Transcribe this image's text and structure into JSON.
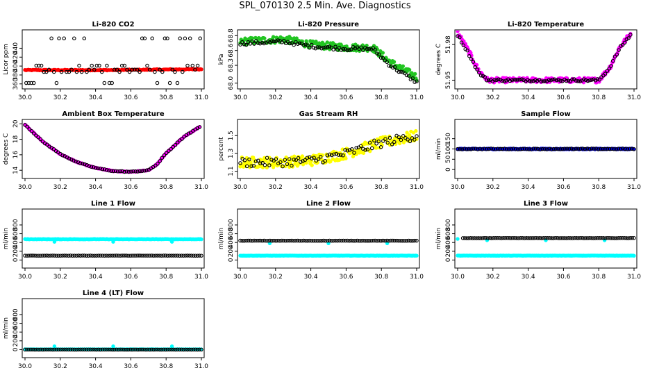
{
  "page_title": "SPL_070130  2.5 Min. Ave. Diagnostics",
  "colors": {
    "black": "#000000",
    "red": "#ff0000",
    "green": "#00cc00",
    "magenta": "#ff00ff",
    "yellow": "#ffff00",
    "blue": "#0000ff",
    "cyan": "#00ffff"
  },
  "chart_data": [
    {
      "type": "scatter",
      "title": "Li-820 CO2",
      "ylabel": "Licor ppm",
      "xlim": [
        30.0,
        31.0
      ],
      "ylim": [
        355,
        475
      ],
      "x_ticks": [
        "30.0",
        "30.2",
        "30.4",
        "30.6",
        "30.8",
        "31.0"
      ],
      "x_tick_values": [
        30.0,
        30.2,
        30.4,
        30.6,
        30.8,
        31.0
      ],
      "y_ticks": [
        "360",
        "380",
        "400",
        "420",
        "440"
      ],
      "y_tick_values": [
        360,
        380,
        400,
        420,
        440
      ],
      "series": [
        {
          "name": "CO2 (red)",
          "color": "#ff0000",
          "marker": "filled",
          "curve": [
            [
              30.0,
              391
            ],
            [
              30.5,
              391
            ],
            [
              31.0,
              393
            ]
          ],
          "noise": 1,
          "n": 160
        },
        {
          "name": "CO2 (black)",
          "color": "#000000",
          "marker": "open",
          "levels": [
            362,
            387,
            392,
            401,
            462
          ],
          "n": 70
        }
      ]
    },
    {
      "type": "scatter",
      "title": "Li-820 Pressure",
      "ylabel": "kPa",
      "xlim": [
        30.0,
        31.0
      ],
      "ylim": [
        67.95,
        68.85
      ],
      "x_ticks": [
        "30.0",
        "30.2",
        "30.4",
        "30.6",
        "30.8",
        "31.0"
      ],
      "x_tick_values": [
        30.0,
        30.2,
        30.4,
        30.6,
        30.8,
        31.0
      ],
      "y_ticks": [
        "68.0",
        "68.3",
        "68.6",
        "68.8"
      ],
      "y_tick_values": [
        68.0,
        68.3,
        68.55,
        68.8
      ],
      "series": [
        {
          "name": "Pressure (green)",
          "color": "#22c522",
          "marker": "filled",
          "curve": [
            [
              30.0,
              68.7
            ],
            [
              30.25,
              68.74
            ],
            [
              30.4,
              68.65
            ],
            [
              30.6,
              68.6
            ],
            [
              30.75,
              68.6
            ],
            [
              30.85,
              68.35
            ],
            [
              31.0,
              68.1
            ]
          ],
          "noise": 0.06,
          "n": 220
        },
        {
          "name": "Pressure (black)",
          "color": "#000000",
          "marker": "open",
          "curve": [
            [
              30.0,
              68.67
            ],
            [
              30.25,
              68.7
            ],
            [
              30.4,
              68.62
            ],
            [
              30.6,
              68.58
            ],
            [
              30.75,
              68.58
            ],
            [
              30.85,
              68.3
            ],
            [
              31.0,
              68.02
            ]
          ],
          "noise": 0.03,
          "n": 90
        }
      ]
    },
    {
      "type": "scatter",
      "title": "Li-820 Temperature",
      "ylabel": "degrees C",
      "xlim": [
        30.0,
        31.0
      ],
      "ylim": [
        51.945,
        51.99
      ],
      "x_ticks": [
        "30.0",
        "30.2",
        "30.4",
        "30.6",
        "30.8",
        "31.0"
      ],
      "x_tick_values": [
        30.0,
        30.2,
        30.4,
        30.6,
        30.8,
        31.0
      ],
      "y_ticks": [
        "51.95",
        "51.98"
      ],
      "y_tick_values": [
        51.95,
        51.98
      ],
      "series": [
        {
          "name": "Temperature (magenta)",
          "color": "#ff00ff",
          "marker": "filled",
          "curve": [
            [
              30.0,
              51.99
            ],
            [
              30.06,
              51.975
            ],
            [
              30.12,
              51.958
            ],
            [
              30.17,
              51.95
            ],
            [
              30.8,
              51.95
            ],
            [
              30.86,
              51.96
            ],
            [
              30.92,
              51.978
            ],
            [
              30.98,
              51.989
            ]
          ],
          "noise": 0.002,
          "n": 200
        },
        {
          "name": "Temperature (black)",
          "color": "#000000",
          "marker": "open",
          "curve": [
            [
              30.0,
              51.988
            ],
            [
              30.06,
              51.973
            ],
            [
              30.12,
              51.956
            ],
            [
              30.17,
              51.95
            ],
            [
              30.8,
              51.95
            ],
            [
              30.86,
              51.96
            ],
            [
              30.92,
              51.977
            ],
            [
              30.98,
              51.988
            ]
          ],
          "noise": 0.001,
          "n": 90
        }
      ]
    },
    {
      "type": "scatter",
      "title": "Ambient Box Temperature",
      "ylabel": "degrees C",
      "xlim": [
        30.0,
        31.0
      ],
      "ylim": [
        13.3,
        20.2
      ],
      "x_ticks": [
        "30.0",
        "30.2",
        "30.4",
        "30.6",
        "30.8",
        "31.0"
      ],
      "x_tick_values": [
        30.0,
        30.2,
        30.4,
        30.6,
        30.8,
        31.0
      ],
      "y_ticks": [
        "14",
        "16",
        "18",
        "20"
      ],
      "y_tick_values": [
        14,
        16,
        18,
        20
      ],
      "series": [
        {
          "name": "Ambient (magenta)",
          "color": "#ff00ff",
          "marker": "filled",
          "curve": [
            [
              30.0,
              19.9
            ],
            [
              30.1,
              17.7
            ],
            [
              30.2,
              16.1
            ],
            [
              30.3,
              15.0
            ],
            [
              30.4,
              14.3
            ],
            [
              30.5,
              13.9
            ],
            [
              30.6,
              13.8
            ],
            [
              30.7,
              14.0
            ],
            [
              30.75,
              14.8
            ],
            [
              30.8,
              16.2
            ],
            [
              30.9,
              18.3
            ],
            [
              30.99,
              19.6
            ]
          ],
          "noise": 0.05,
          "n": 220
        },
        {
          "name": "Ambient (black)",
          "color": "#000000",
          "marker": "open",
          "curve": [
            [
              30.0,
              19.9
            ],
            [
              30.1,
              17.7
            ],
            [
              30.2,
              16.1
            ],
            [
              30.3,
              15.0
            ],
            [
              30.4,
              14.3
            ],
            [
              30.5,
              13.9
            ],
            [
              30.6,
              13.8
            ],
            [
              30.7,
              14.0
            ],
            [
              30.75,
              14.8
            ],
            [
              30.8,
              16.2
            ],
            [
              30.9,
              18.3
            ],
            [
              30.99,
              19.6
            ]
          ],
          "noise": 0.05,
          "n": 80
        }
      ]
    },
    {
      "type": "scatter",
      "title": "Gas Stream RH",
      "ylabel": "percent",
      "xlim": [
        30.0,
        31.0
      ],
      "ylim": [
        1.05,
        1.65
      ],
      "x_ticks": [
        "30.0",
        "30.2",
        "30.4",
        "30.6",
        "30.8",
        "31.0"
      ],
      "x_tick_values": [
        30.0,
        30.2,
        30.4,
        30.6,
        30.8,
        31.0
      ],
      "y_ticks": [
        "1.1",
        "1.3",
        "1.5"
      ],
      "y_tick_values": [
        1.1,
        1.3,
        1.5
      ],
      "series": [
        {
          "name": "RH (yellow)",
          "color": "#ffff00",
          "marker": "filled",
          "curve": [
            [
              30.0,
              1.2
            ],
            [
              30.2,
              1.2
            ],
            [
              30.4,
              1.22
            ],
            [
              30.6,
              1.3
            ],
            [
              30.8,
              1.42
            ],
            [
              31.0,
              1.5
            ]
          ],
          "noise": 0.06,
          "n": 220
        },
        {
          "name": "RH (black)",
          "color": "#000000",
          "marker": "open",
          "curve": [
            [
              30.0,
              1.2
            ],
            [
              30.2,
              1.2
            ],
            [
              30.4,
              1.22
            ],
            [
              30.6,
              1.3
            ],
            [
              30.8,
              1.42
            ],
            [
              31.0,
              1.5
            ]
          ],
          "noise": 0.05,
          "n": 80
        }
      ]
    },
    {
      "type": "scatter",
      "title": "Sample Flow",
      "ylabel": "ml/min",
      "xlim": [
        30.0,
        31.0
      ],
      "ylim": [
        -30,
        230
      ],
      "x_ticks": [
        "30.0",
        "30.2",
        "30.4",
        "30.6",
        "30.8",
        "31.0"
      ],
      "x_tick_values": [
        30.0,
        30.2,
        30.4,
        30.6,
        30.8,
        31.0
      ],
      "y_ticks": [
        "0",
        "50",
        "100",
        "150"
      ],
      "y_tick_values": [
        0,
        50,
        100,
        150
      ],
      "series": [
        {
          "name": "Sample (blue)",
          "color": "#0000ff",
          "marker": "filled",
          "curve": [
            [
              30.0,
              100
            ],
            [
              31.0,
              100
            ]
          ],
          "noise": 2,
          "n": 200
        },
        {
          "name": "Sample (black)",
          "color": "#000000",
          "marker": "open",
          "curve": [
            [
              30.0,
              100
            ],
            [
              31.0,
              100
            ]
          ],
          "noise": 2,
          "n": 80
        }
      ]
    },
    {
      "type": "scatter",
      "title": "Line 1 Flow",
      "ylabel": "ml/min",
      "xlim": [
        30.0,
        31.0
      ],
      "ylim": [
        -120,
        1100
      ],
      "x_ticks": [
        "30.0",
        "30.2",
        "30.4",
        "30.6",
        "30.8",
        "31.0"
      ],
      "x_tick_values": [
        30.0,
        30.2,
        30.4,
        30.6,
        30.8,
        31.0
      ],
      "y_ticks": [
        "0",
        "200",
        "400",
        "600",
        "800"
      ],
      "y_tick_values": [
        0,
        200,
        400,
        600,
        800
      ],
      "series": [
        {
          "name": "Line 1 (cyan)",
          "color": "#00ffff",
          "marker": "filled",
          "curve": [
            [
              30.0,
              475
            ],
            [
              31.0,
              475
            ]
          ],
          "noise": 4,
          "n": 200,
          "outliers": [
            [
              30.167,
              415
            ],
            [
              30.5,
              415
            ],
            [
              30.833,
              415
            ]
          ]
        },
        {
          "name": "Line 1 (black)",
          "color": "#000000",
          "marker": "open",
          "curve": [
            [
              30.0,
              100
            ],
            [
              31.0,
              100
            ]
          ],
          "noise": 2,
          "n": 90
        }
      ]
    },
    {
      "type": "scatter",
      "title": "Line 2 Flow",
      "ylabel": "ml/min",
      "xlim": [
        30.0,
        31.0
      ],
      "ylim": [
        -120,
        1100
      ],
      "x_ticks": [
        "30.0",
        "30.2",
        "30.4",
        "30.6",
        "30.8",
        "31.0"
      ],
      "x_tick_values": [
        30.0,
        30.2,
        30.4,
        30.6,
        30.8,
        31.0
      ],
      "y_ticks": [
        "0",
        "200",
        "400",
        "600",
        "800"
      ],
      "y_tick_values": [
        0,
        200,
        400,
        600,
        800
      ],
      "series": [
        {
          "name": "Line 2 (cyan)",
          "color": "#00ffff",
          "marker": "filled",
          "curve": [
            [
              30.0,
              100
            ],
            [
              31.0,
              100
            ]
          ],
          "noise": 3,
          "n": 200,
          "outliers": [
            [
              30.167,
              380
            ],
            [
              30.5,
              380
            ],
            [
              30.833,
              380
            ]
          ]
        },
        {
          "name": "Line 2 (black)",
          "color": "#000000",
          "marker": "open",
          "curve": [
            [
              30.0,
              440
            ],
            [
              31.0,
              440
            ]
          ],
          "noise": 3,
          "n": 90
        }
      ]
    },
    {
      "type": "scatter",
      "title": "Line 3 Flow",
      "ylabel": "ml/min",
      "xlim": [
        30.0,
        31.0
      ],
      "ylim": [
        -120,
        1100
      ],
      "x_ticks": [
        "30.0",
        "30.2",
        "30.4",
        "30.6",
        "30.8",
        "31.0"
      ],
      "x_tick_values": [
        30.0,
        30.2,
        30.4,
        30.6,
        30.8,
        31.0
      ],
      "y_ticks": [
        "0",
        "200",
        "400",
        "600",
        "800"
      ],
      "y_tick_values": [
        0,
        200,
        400,
        600,
        800
      ],
      "series": [
        {
          "name": "Line 3 (cyan)",
          "color": "#00ffff",
          "marker": "filled",
          "curve": [
            [
              30.0,
              100
            ],
            [
              31.0,
              100
            ]
          ],
          "noise": 3,
          "n": 200,
          "outliers": [
            [
              30.0,
              480
            ],
            [
              30.167,
              450
            ],
            [
              30.5,
              450
            ],
            [
              30.833,
              450
            ]
          ]
        },
        {
          "name": "Line 3 (black)",
          "color": "#000000",
          "marker": "open",
          "curve": [
            [
              30.03,
              500
            ],
            [
              31.0,
              500
            ]
          ],
          "noise": 3,
          "n": 90
        }
      ]
    },
    {
      "type": "scatter",
      "title": "Line 4 (LT) Flow",
      "ylabel": "ml/min",
      "xlim": [
        30.0,
        31.0
      ],
      "ylim": [
        -120,
        1100
      ],
      "x_ticks": [
        "30.0",
        "30.2",
        "30.4",
        "30.6",
        "30.8",
        "31.0"
      ],
      "x_tick_values": [
        30.0,
        30.2,
        30.4,
        30.6,
        30.8,
        31.0
      ],
      "y_ticks": [
        "0",
        "200",
        "400",
        "600",
        "800"
      ],
      "y_tick_values": [
        0,
        200,
        400,
        600,
        800
      ],
      "series": [
        {
          "name": "Line 4 (cyan)",
          "color": "#00ffff",
          "marker": "filled",
          "curve": [
            [
              30.0,
              5
            ],
            [
              31.0,
              5
            ]
          ],
          "noise": 2,
          "n": 200,
          "outliers": [
            [
              30.167,
              75
            ],
            [
              30.5,
              75
            ],
            [
              30.833,
              75
            ]
          ]
        },
        {
          "name": "Line 4 (black)",
          "color": "#000000",
          "marker": "open",
          "curve": [
            [
              30.0,
              0
            ],
            [
              31.0,
              0
            ]
          ],
          "noise": 1,
          "n": 90
        }
      ]
    }
  ]
}
